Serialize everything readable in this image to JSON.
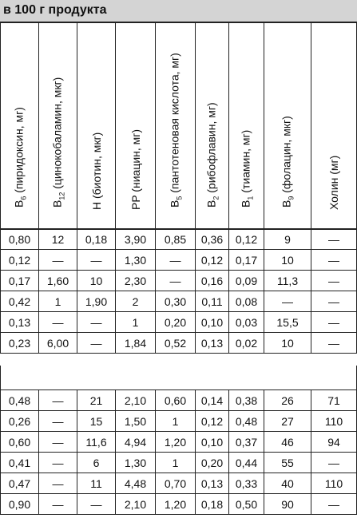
{
  "caption": "в 100 г продукта",
  "columns": [
    {
      "name": "B",
      "sub": "6",
      "rest": " (пиридоксин, мг)"
    },
    {
      "name": "B",
      "sub": "12",
      "rest": " (цинокобаламин, мкг)"
    },
    {
      "name": "H (биотин, мкг)",
      "sub": "",
      "rest": ""
    },
    {
      "name": "PP (ниацин, мг)",
      "sub": "",
      "rest": ""
    },
    {
      "name": "B",
      "sub": "5",
      "rest": " (пантотеновая кислота, мг)"
    },
    {
      "name": "B",
      "sub": "2",
      "rest": " (рибофлавин, мг)"
    },
    {
      "name": "B",
      "sub": "1",
      "rest": " (тиамин, мг)"
    },
    {
      "name": "B",
      "sub": "9",
      "rest": " (фолацин, мкг)"
    },
    {
      "name": "Холин (мг)",
      "sub": "",
      "rest": ""
    }
  ],
  "group1": [
    [
      "0,80",
      "12",
      "0,18",
      "3,90",
      "0,85",
      "0,36",
      "0,12",
      "9",
      "—"
    ],
    [
      "0,12",
      "—",
      "—",
      "1,30",
      "—",
      "0,12",
      "0,17",
      "10",
      "—"
    ],
    [
      "0,17",
      "1,60",
      "10",
      "2,30",
      "—",
      "0,16",
      "0,09",
      "11,3",
      "—"
    ],
    [
      "0,42",
      "1",
      "1,90",
      "2",
      "0,30",
      "0,11",
      "0,08",
      "—",
      "—"
    ],
    [
      "0,13",
      "—",
      "—",
      "1",
      "0,20",
      "0,10",
      "0,03",
      "15,5",
      "—"
    ],
    [
      "0,23",
      "6,00",
      "—",
      "1,84",
      "0,52",
      "0,13",
      "0,02",
      "10",
      "—"
    ]
  ],
  "group2": [
    [
      "0,48",
      "—",
      "21",
      "2,10",
      "0,60",
      "0,14",
      "0,38",
      "26",
      "71"
    ],
    [
      "0,26",
      "—",
      "15",
      "1,50",
      "1",
      "0,12",
      "0,48",
      "27",
      "110"
    ],
    [
      "0,60",
      "—",
      "11,6",
      "4,94",
      "1,20",
      "0,10",
      "0,37",
      "46",
      "94"
    ],
    [
      "0,41",
      "—",
      "6",
      "1,30",
      "1",
      "0,20",
      "0,44",
      "55",
      "—"
    ],
    [
      "0,47",
      "—",
      "11",
      "4,48",
      "0,70",
      "0,13",
      "0,33",
      "40",
      "110"
    ],
    [
      "0,90",
      "—",
      "—",
      "2,10",
      "1,20",
      "0,18",
      "0,50",
      "90",
      "—"
    ]
  ]
}
